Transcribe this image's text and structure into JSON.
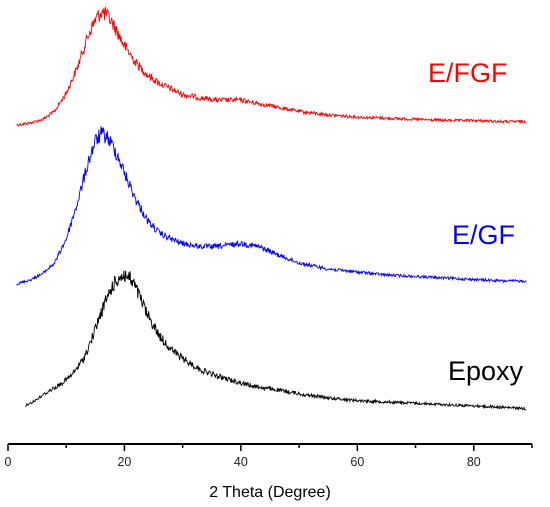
{
  "chart_data": {
    "type": "line",
    "title": "",
    "xlabel": "2 Theta (Degree)",
    "ylabel": "",
    "xlim": [
      0,
      90
    ],
    "xticks": [
      0,
      20,
      40,
      60,
      80
    ],
    "xtick_labels": [
      "0",
      "20",
      "40",
      "60",
      "80"
    ],
    "grid": false,
    "legend": "inline labels at right of each curve",
    "series": [
      {
        "name": "E/FGF",
        "color": "#ff0000",
        "x": [
          1.5,
          4,
          6,
          8,
          10,
          12,
          13,
          14,
          15,
          16,
          17,
          18,
          19,
          20,
          22,
          24,
          26,
          28,
          30,
          33,
          36,
          40,
          43,
          46,
          50,
          55,
          60,
          65,
          70,
          75,
          80,
          85,
          89
        ],
        "y": [
          0.0,
          0.02,
          0.05,
          0.12,
          0.28,
          0.52,
          0.68,
          0.82,
          0.93,
          1.0,
          0.97,
          0.9,
          0.8,
          0.7,
          0.55,
          0.44,
          0.37,
          0.32,
          0.27,
          0.24,
          0.22,
          0.22,
          0.19,
          0.16,
          0.12,
          0.09,
          0.07,
          0.06,
          0.05,
          0.04,
          0.04,
          0.03,
          0.03
        ]
      },
      {
        "name": "E/GF",
        "color": "#0000ff",
        "x": [
          1.5,
          4,
          6,
          8,
          10,
          12,
          13,
          14,
          15,
          16,
          17,
          18,
          19,
          20,
          22,
          24,
          26,
          28,
          30,
          33,
          36,
          40,
          43,
          46,
          50,
          55,
          60,
          65,
          70,
          75,
          80,
          85,
          89
        ],
        "y": [
          0.0,
          0.03,
          0.07,
          0.14,
          0.3,
          0.55,
          0.7,
          0.84,
          0.95,
          1.0,
          0.98,
          0.92,
          0.84,
          0.74,
          0.56,
          0.42,
          0.34,
          0.3,
          0.27,
          0.25,
          0.25,
          0.27,
          0.25,
          0.2,
          0.14,
          0.1,
          0.08,
          0.06,
          0.05,
          0.04,
          0.03,
          0.02,
          0.02
        ]
      },
      {
        "name": "Epoxy",
        "color": "#000000",
        "x": [
          3,
          5,
          7,
          9,
          11,
          13,
          14,
          15,
          16,
          17,
          18,
          19,
          20,
          21,
          22,
          23,
          24,
          26,
          28,
          30,
          33,
          36,
          40,
          43,
          46,
          50,
          55,
          60,
          65,
          70,
          75,
          80,
          85,
          89
        ],
        "y": [
          0.03,
          0.08,
          0.14,
          0.19,
          0.26,
          0.38,
          0.48,
          0.6,
          0.72,
          0.83,
          0.92,
          0.98,
          1.0,
          0.97,
          0.9,
          0.8,
          0.7,
          0.55,
          0.45,
          0.38,
          0.3,
          0.25,
          0.2,
          0.17,
          0.15,
          0.12,
          0.09,
          0.07,
          0.06,
          0.05,
          0.04,
          0.03,
          0.02,
          0.01
        ]
      }
    ]
  }
}
